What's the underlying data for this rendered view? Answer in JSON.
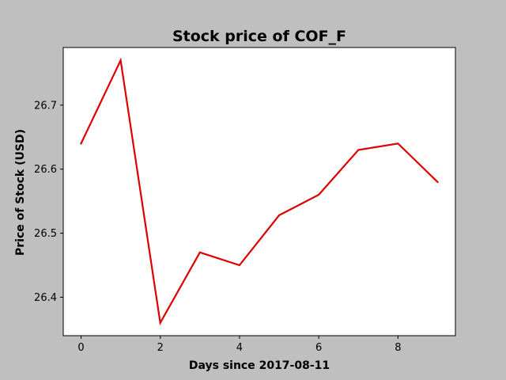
{
  "chart_data": {
    "type": "line",
    "title": "Stock price of COF_F",
    "xlabel": "Days since 2017-08-11",
    "ylabel": "Price of Stock (USD)",
    "x": [
      0,
      1,
      2,
      3,
      4,
      5,
      6,
      7,
      8,
      9
    ],
    "series": [
      {
        "values": [
          26.64,
          26.77,
          26.36,
          26.47,
          26.45,
          26.528,
          26.56,
          26.63,
          26.64,
          26.58
        ],
        "color": "#dd0000"
      }
    ],
    "xlim": [
      -0.45,
      9.45
    ],
    "ylim": [
      26.34,
      26.79
    ],
    "xticks": [
      0,
      2,
      4,
      6,
      8
    ],
    "yticks": [
      26.4,
      26.5,
      26.6,
      26.7
    ],
    "xtick_labels": [
      "0",
      "2",
      "4",
      "6",
      "8"
    ],
    "ytick_labels": [
      "26.4",
      "26.5",
      "26.6",
      "26.7"
    ],
    "grid": false,
    "background_color": "#bfbfbf",
    "plot_background_color": "#ffffff"
  }
}
